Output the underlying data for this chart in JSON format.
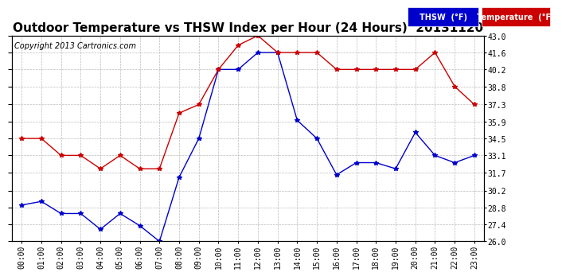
{
  "title": "Outdoor Temperature vs THSW Index per Hour (24 Hours)  20131120",
  "copyright": "Copyright 2013 Cartronics.com",
  "hours": [
    "00:00",
    "01:00",
    "02:00",
    "03:00",
    "04:00",
    "05:00",
    "06:00",
    "07:00",
    "08:00",
    "09:00",
    "10:00",
    "11:00",
    "12:00",
    "13:00",
    "14:00",
    "15:00",
    "16:00",
    "17:00",
    "18:00",
    "19:00",
    "20:00",
    "21:00",
    "22:00",
    "23:00"
  ],
  "temperature": [
    34.5,
    34.5,
    33.1,
    33.1,
    32.0,
    33.1,
    32.0,
    32.0,
    36.6,
    37.3,
    40.2,
    42.2,
    43.0,
    41.6,
    41.6,
    41.6,
    40.2,
    40.2,
    40.2,
    40.2,
    40.2,
    41.6,
    38.8,
    37.3
  ],
  "thsw": [
    29.0,
    29.3,
    28.3,
    28.3,
    27.0,
    28.3,
    27.3,
    26.0,
    31.3,
    34.5,
    40.2,
    40.2,
    41.6,
    41.6,
    36.0,
    34.5,
    31.5,
    32.5,
    32.5,
    32.0,
    35.0,
    33.1,
    32.5,
    33.1
  ],
  "temp_color": "#cc0000",
  "thsw_color": "#0000cc",
  "ylim": [
    26.0,
    43.0
  ],
  "yticks": [
    26.0,
    27.4,
    28.8,
    30.2,
    31.7,
    33.1,
    34.5,
    35.9,
    37.3,
    38.8,
    40.2,
    41.6,
    43.0
  ],
  "background_color": "#ffffff",
  "plot_bg_color": "#ffffff",
  "grid_color": "#bbbbbb",
  "title_fontsize": 11,
  "copyright_fontsize": 7,
  "tick_fontsize": 7,
  "legend_thsw_bg": "#0000cc",
  "legend_temp_bg": "#cc0000",
  "legend_thsw_label": "THSW  (°F)",
  "legend_temp_label": "Temperature  (°F)"
}
